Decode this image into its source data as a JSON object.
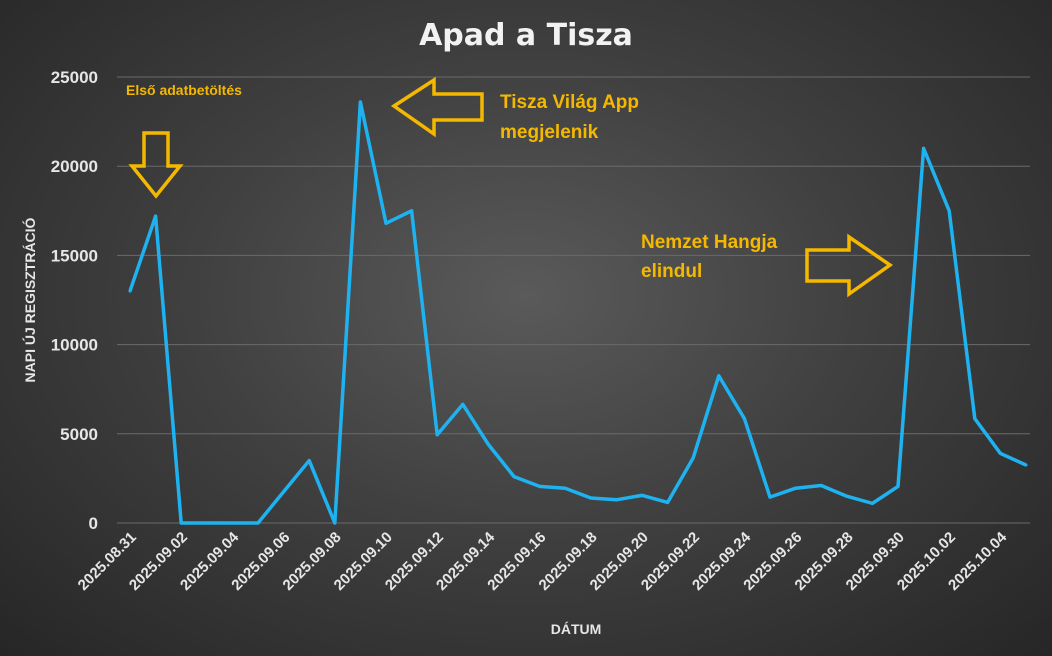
{
  "chart_data": {
    "type": "line",
    "title": "Apad a Tisza",
    "xlabel": "DÁTUM",
    "ylabel": "NAPI ÚJ REGISZTRÁCIÓ",
    "ylim": [
      0,
      25000
    ],
    "yticks": [
      "0",
      "5000",
      "10000",
      "15000",
      "20000",
      "25000"
    ],
    "x_tick_labels": [
      "2025.08.31",
      "2025.09.02",
      "2025.09.04",
      "2025.09.06",
      "2025.09.08",
      "2025.09.10",
      "2025.09.12",
      "2025.09.14",
      "2025.09.16",
      "2025.09.18",
      "2025.09.20",
      "2025.09.22",
      "2025.09.24",
      "2025.09.26",
      "2025.09.28",
      "2025.09.30",
      "2025.10.02",
      "2025.10.04"
    ],
    "grid": true,
    "line_color": "#1fb2f0",
    "annotation_color": "#f5b800",
    "x": [
      "2025.08.31",
      "2025.09.01",
      "2025.09.02",
      "2025.09.03",
      "2025.09.04",
      "2025.09.05",
      "2025.09.06",
      "2025.09.07",
      "2025.09.08",
      "2025.09.09",
      "2025.09.10",
      "2025.09.11",
      "2025.09.12",
      "2025.09.13",
      "2025.09.14",
      "2025.09.15",
      "2025.09.16",
      "2025.09.17",
      "2025.09.18",
      "2025.09.19",
      "2025.09.20",
      "2025.09.21",
      "2025.09.22",
      "2025.09.23",
      "2025.09.24",
      "2025.09.25",
      "2025.09.26",
      "2025.09.27",
      "2025.09.28",
      "2025.09.29",
      "2025.09.30",
      "2025.10.01",
      "2025.10.02",
      "2025.10.03",
      "2025.10.04",
      "2025.10.05"
    ],
    "values": [
      13000,
      17200,
      0,
      0,
      0,
      0,
      1750,
      3500,
      0,
      23600,
      16800,
      17500,
      4950,
      6650,
      4400,
      2600,
      2050,
      1950,
      1400,
      1300,
      1550,
      1150,
      3650,
      8250,
      5850,
      1450,
      1950,
      2100,
      1500,
      1100,
      2050,
      21000,
      17500,
      5850,
      3900,
      3250
    ],
    "annotations": [
      {
        "id": "first",
        "text": "Első adatbetöltés",
        "date": "2025.09.01",
        "arrow": "down"
      },
      {
        "id": "app",
        "lines": [
          "Tisza Világ App",
          "megjelenik"
        ],
        "date": "2025.09.09",
        "arrow": "left"
      },
      {
        "id": "nemzet",
        "lines": [
          "Nemzet Hangja",
          "elindul"
        ],
        "date": "2025.10.01",
        "arrow": "right"
      }
    ]
  }
}
